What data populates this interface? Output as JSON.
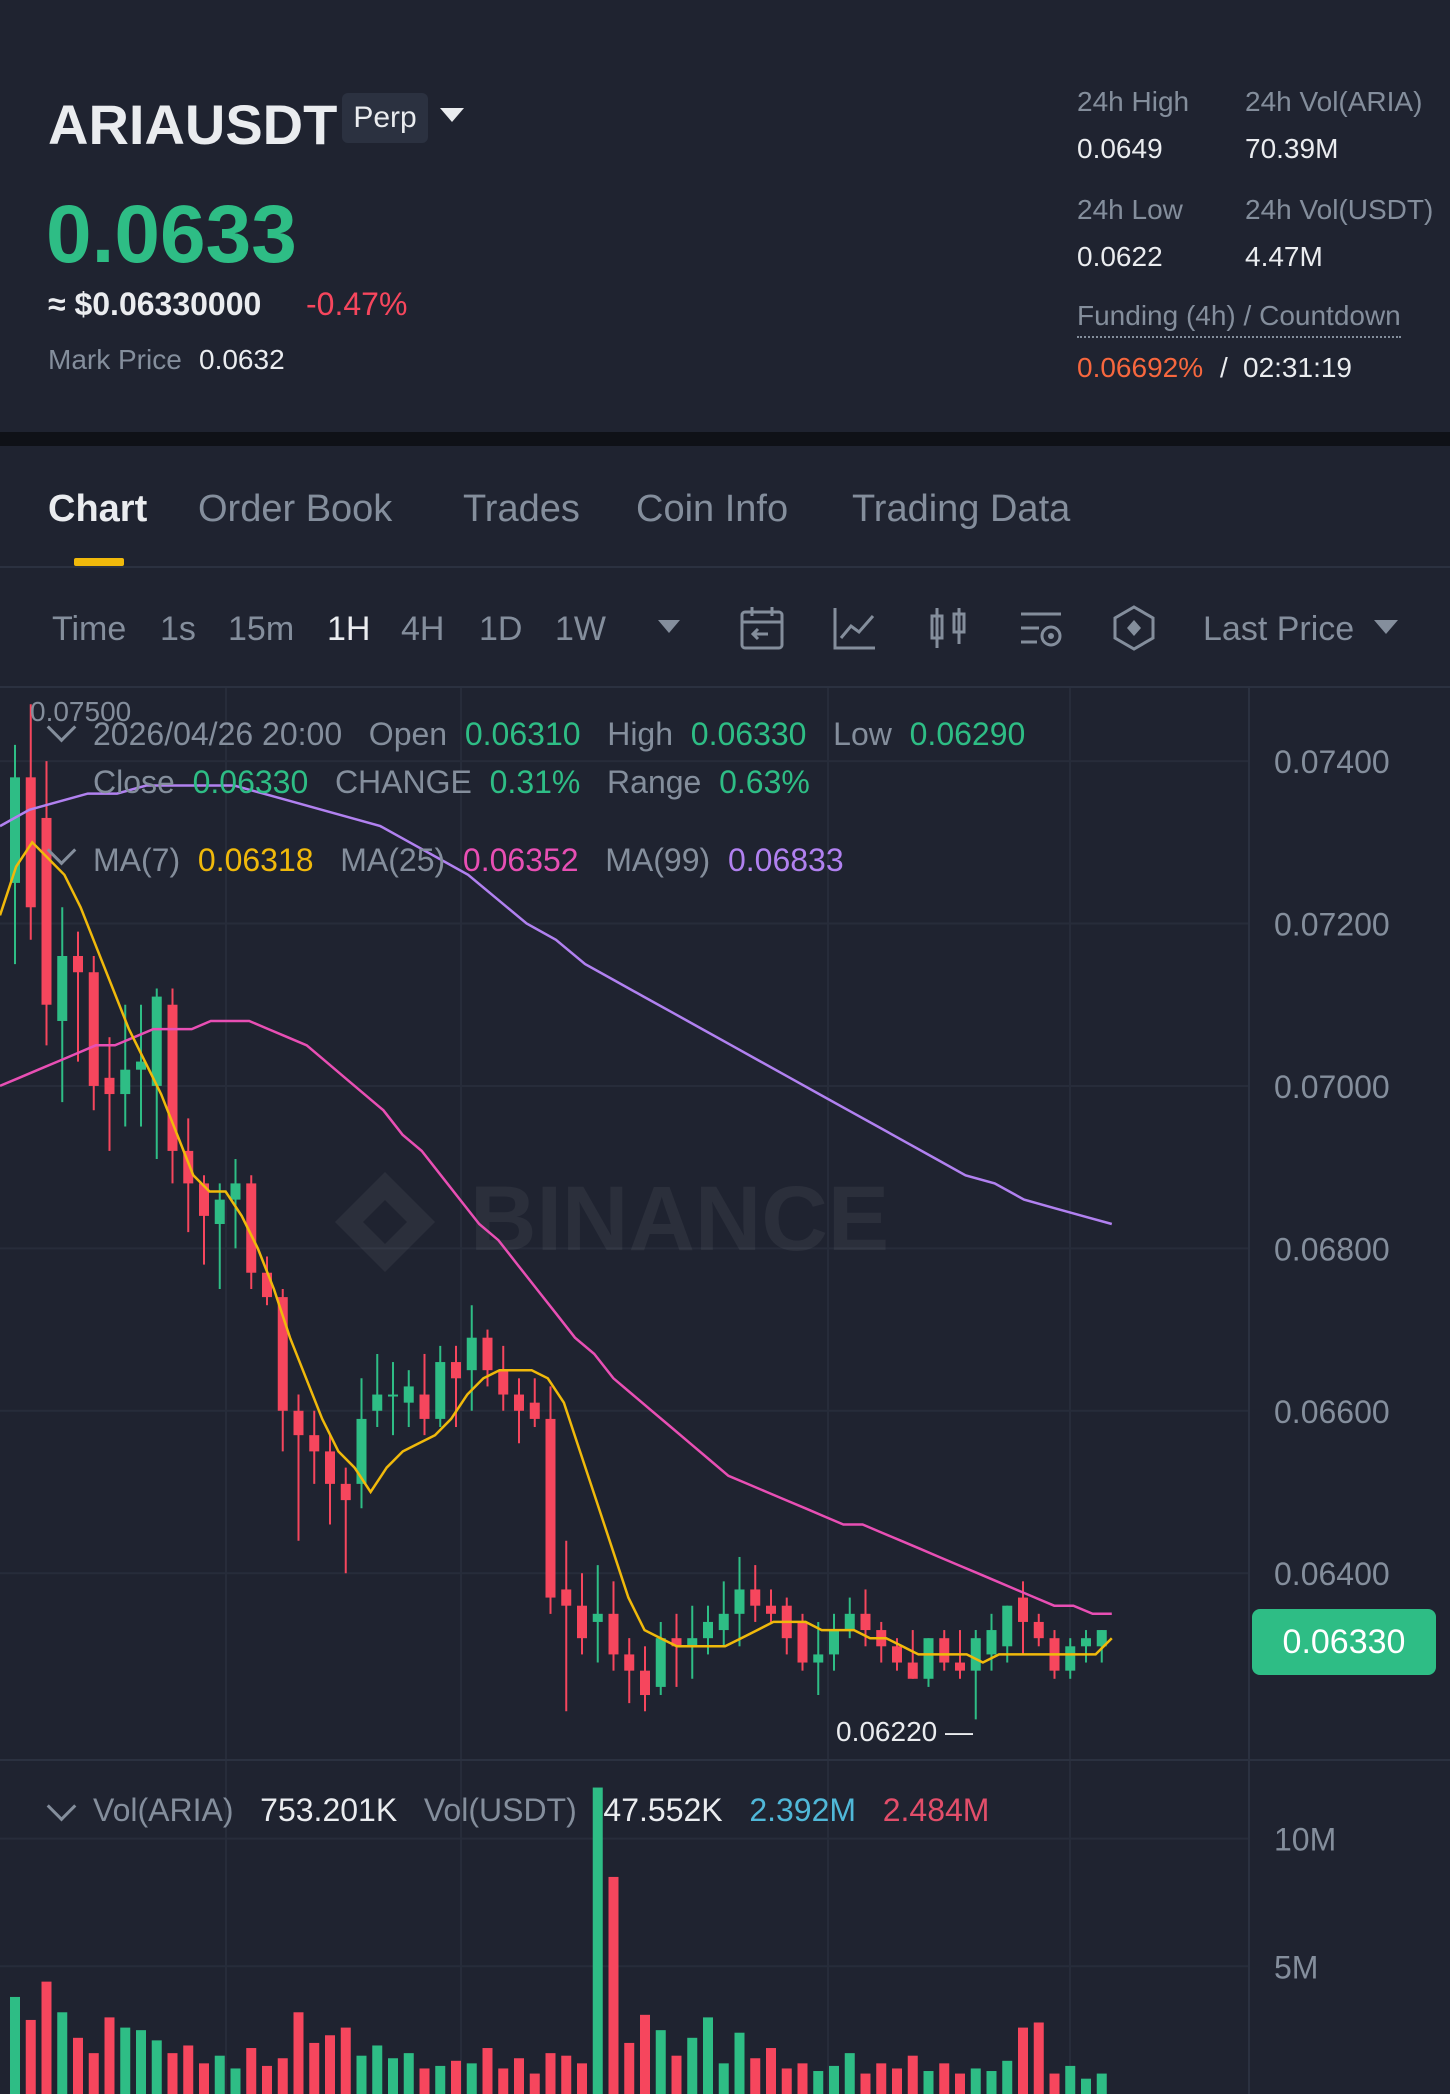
{
  "header": {
    "symbol": "ARIAUSDT",
    "contract_type": "Perp",
    "last_price": "0.0633",
    "approx_usd": "≈ $0.06330000",
    "change_pct": "-0.47%",
    "mark_price_label": "Mark Price",
    "mark_price_value": "0.0632",
    "stats": {
      "high_label": "24h High",
      "high_value": "0.0649",
      "vol_base_label": "24h Vol(ARIA)",
      "vol_base_value": "70.39M",
      "low_label": "24h Low",
      "low_value": "0.0622",
      "vol_quote_label": "24h Vol(USDT)",
      "vol_quote_value": "4.47M"
    },
    "funding": {
      "label": "Funding (4h) / Countdown",
      "rate": "0.06692%",
      "separator": "/",
      "countdown": "02:31:19"
    },
    "colors": {
      "up": "#2ebd85",
      "down": "#f6465d",
      "funding": "#f7673e",
      "accent": "#f0b90b"
    }
  },
  "tabs": [
    {
      "label": "Chart",
      "active": true
    },
    {
      "label": "Order Book"
    },
    {
      "label": "Trades"
    },
    {
      "label": "Coin Info"
    },
    {
      "label": "Trading Data"
    }
  ],
  "toolbar": {
    "timeframes": [
      {
        "label": "Time"
      },
      {
        "label": "1s"
      },
      {
        "label": "15m"
      },
      {
        "label": "1H",
        "active": true
      },
      {
        "label": "4H"
      },
      {
        "label": "1D"
      },
      {
        "label": "1W"
      }
    ],
    "icons": [
      "calendar-icon",
      "indicator-line-icon",
      "candle-type-icon",
      "chart-settings-icon",
      "hexagon-tools-icon"
    ],
    "price_type": "Last Price"
  },
  "overlay": {
    "top_price": "0.07500",
    "datetime": "2026/04/26 20:00",
    "open_label": "Open",
    "open_value": "0.06310",
    "high_label": "High",
    "high_value": "0.06330",
    "low_label": "Low",
    "low_value": "0.06290",
    "close_label": "Close",
    "close_value": "0.06330",
    "change_label": "CHANGE",
    "change_value": "0.31%",
    "range_label": "Range",
    "range_value": "0.63%",
    "ma7_label": "MA(7)",
    "ma7_value": "0.06318",
    "ma25_label": "MA(25)",
    "ma25_value": "0.06352",
    "ma99_label": "MA(99)",
    "ma99_value": "0.06833",
    "low_marker": "0.06220 —",
    "current_price_tag": "0.06330",
    "watermark": "BINANCE"
  },
  "volume_overlay": {
    "base_label": "Vol(ARIA)",
    "base_value": "753.201K",
    "quote_label": "Vol(USDT)",
    "quote_value": "47.552K",
    "ma1_value": "2.392M",
    "ma2_value": "2.484M"
  },
  "chart_data": {
    "type": "candlestick",
    "interval": "1H",
    "y_axis_ticks": [
      "0.07400",
      "0.07200",
      "0.07000",
      "0.06800",
      "0.06600",
      "0.06400"
    ],
    "ylim": [
      0.0617,
      0.0749
    ],
    "volume_axis_ticks": [
      "10M",
      "5M"
    ],
    "volume_ylim": [
      0,
      13
    ],
    "candles": [
      {
        "o": 0.0725,
        "h": 0.0742,
        "l": 0.0715,
        "c": 0.0738
      },
      {
        "o": 0.0738,
        "h": 0.0747,
        "l": 0.0718,
        "c": 0.0722
      },
      {
        "o": 0.0733,
        "h": 0.074,
        "l": 0.0705,
        "c": 0.071
      },
      {
        "o": 0.0708,
        "h": 0.0722,
        "l": 0.0698,
        "c": 0.0716
      },
      {
        "o": 0.0716,
        "h": 0.0719,
        "l": 0.0703,
        "c": 0.0714
      },
      {
        "o": 0.0714,
        "h": 0.0716,
        "l": 0.0697,
        "c": 0.07
      },
      {
        "o": 0.0701,
        "h": 0.0706,
        "l": 0.0692,
        "c": 0.0699
      },
      {
        "o": 0.0699,
        "h": 0.071,
        "l": 0.0695,
        "c": 0.0702
      },
      {
        "o": 0.0702,
        "h": 0.071,
        "l": 0.0695,
        "c": 0.0703
      },
      {
        "o": 0.07,
        "h": 0.0712,
        "l": 0.0691,
        "c": 0.0711
      },
      {
        "o": 0.071,
        "h": 0.0712,
        "l": 0.0688,
        "c": 0.0692
      },
      {
        "o": 0.0692,
        "h": 0.0696,
        "l": 0.0682,
        "c": 0.0688
      },
      {
        "o": 0.0688,
        "h": 0.0689,
        "l": 0.0678,
        "c": 0.0684
      },
      {
        "o": 0.0683,
        "h": 0.0688,
        "l": 0.0675,
        "c": 0.0686
      },
      {
        "o": 0.0686,
        "h": 0.0691,
        "l": 0.068,
        "c": 0.0688
      },
      {
        "o": 0.0688,
        "h": 0.0689,
        "l": 0.0675,
        "c": 0.0677
      },
      {
        "o": 0.0677,
        "h": 0.0679,
        "l": 0.0673,
        "c": 0.0674
      },
      {
        "o": 0.0674,
        "h": 0.0675,
        "l": 0.0655,
        "c": 0.066
      },
      {
        "o": 0.066,
        "h": 0.0662,
        "l": 0.0644,
        "c": 0.0657
      },
      {
        "o": 0.0657,
        "h": 0.066,
        "l": 0.0651,
        "c": 0.0655
      },
      {
        "o": 0.0655,
        "h": 0.0657,
        "l": 0.0646,
        "c": 0.0651
      },
      {
        "o": 0.0651,
        "h": 0.0653,
        "l": 0.064,
        "c": 0.0649
      },
      {
        "o": 0.0651,
        "h": 0.0664,
        "l": 0.0648,
        "c": 0.0659
      },
      {
        "o": 0.066,
        "h": 0.0667,
        "l": 0.0658,
        "c": 0.0662
      },
      {
        "o": 0.0662,
        "h": 0.0666,
        "l": 0.0657,
        "c": 0.0662
      },
      {
        "o": 0.0661,
        "h": 0.0665,
        "l": 0.0658,
        "c": 0.0663
      },
      {
        "o": 0.0662,
        "h": 0.0667,
        "l": 0.0657,
        "c": 0.0659
      },
      {
        "o": 0.0659,
        "h": 0.0668,
        "l": 0.0658,
        "c": 0.0666
      },
      {
        "o": 0.0666,
        "h": 0.0668,
        "l": 0.0658,
        "c": 0.0664
      },
      {
        "o": 0.0665,
        "h": 0.0673,
        "l": 0.066,
        "c": 0.0669
      },
      {
        "o": 0.0669,
        "h": 0.067,
        "l": 0.0663,
        "c": 0.0665
      },
      {
        "o": 0.0665,
        "h": 0.0668,
        "l": 0.066,
        "c": 0.0662
      },
      {
        "o": 0.0662,
        "h": 0.0664,
        "l": 0.0656,
        "c": 0.066
      },
      {
        "o": 0.0661,
        "h": 0.0664,
        "l": 0.0658,
        "c": 0.0659
      },
      {
        "o": 0.0659,
        "h": 0.0663,
        "l": 0.0635,
        "c": 0.0637
      },
      {
        "o": 0.0638,
        "h": 0.0644,
        "l": 0.0623,
        "c": 0.0636
      },
      {
        "o": 0.0636,
        "h": 0.064,
        "l": 0.063,
        "c": 0.0632
      },
      {
        "o": 0.0634,
        "h": 0.0641,
        "l": 0.0629,
        "c": 0.0635
      },
      {
        "o": 0.0635,
        "h": 0.0639,
        "l": 0.0628,
        "c": 0.063
      },
      {
        "o": 0.063,
        "h": 0.0632,
        "l": 0.0624,
        "c": 0.0628
      },
      {
        "o": 0.0628,
        "h": 0.0631,
        "l": 0.0623,
        "c": 0.0625
      },
      {
        "o": 0.0626,
        "h": 0.0634,
        "l": 0.0625,
        "c": 0.0632
      },
      {
        "o": 0.0632,
        "h": 0.0635,
        "l": 0.0626,
        "c": 0.0631
      },
      {
        "o": 0.0631,
        "h": 0.0636,
        "l": 0.0627,
        "c": 0.0632
      },
      {
        "o": 0.0632,
        "h": 0.0636,
        "l": 0.063,
        "c": 0.0634
      },
      {
        "o": 0.0633,
        "h": 0.0639,
        "l": 0.0631,
        "c": 0.0635
      },
      {
        "o": 0.0635,
        "h": 0.0642,
        "l": 0.0631,
        "c": 0.0638
      },
      {
        "o": 0.0638,
        "h": 0.0641,
        "l": 0.0634,
        "c": 0.0636
      },
      {
        "o": 0.0636,
        "h": 0.0638,
        "l": 0.0634,
        "c": 0.0635
      },
      {
        "o": 0.0636,
        "h": 0.0637,
        "l": 0.063,
        "c": 0.0632
      },
      {
        "o": 0.0634,
        "h": 0.0635,
        "l": 0.0628,
        "c": 0.0629
      },
      {
        "o": 0.0629,
        "h": 0.0634,
        "l": 0.0625,
        "c": 0.063
      },
      {
        "o": 0.063,
        "h": 0.0635,
        "l": 0.0628,
        "c": 0.0633
      },
      {
        "o": 0.0633,
        "h": 0.0637,
        "l": 0.0632,
        "c": 0.0635
      },
      {
        "o": 0.0635,
        "h": 0.0638,
        "l": 0.0631,
        "c": 0.0633
      },
      {
        "o": 0.0633,
        "h": 0.0634,
        "l": 0.0629,
        "c": 0.0631
      },
      {
        "o": 0.0631,
        "h": 0.0632,
        "l": 0.0628,
        "c": 0.0629
      },
      {
        "o": 0.0629,
        "h": 0.0633,
        "l": 0.0627,
        "c": 0.0627
      },
      {
        "o": 0.0627,
        "h": 0.0632,
        "l": 0.0626,
        "c": 0.0632
      },
      {
        "o": 0.0632,
        "h": 0.0633,
        "l": 0.0628,
        "c": 0.0629
      },
      {
        "o": 0.0629,
        "h": 0.0633,
        "l": 0.0627,
        "c": 0.0628
      },
      {
        "o": 0.0628,
        "h": 0.0633,
        "l": 0.0622,
        "c": 0.0632
      },
      {
        "o": 0.063,
        "h": 0.0635,
        "l": 0.0628,
        "c": 0.0633
      },
      {
        "o": 0.0631,
        "h": 0.0636,
        "l": 0.0629,
        "c": 0.0636
      },
      {
        "o": 0.0637,
        "h": 0.0639,
        "l": 0.063,
        "c": 0.0634
      },
      {
        "o": 0.0634,
        "h": 0.0635,
        "l": 0.0631,
        "c": 0.0632
      },
      {
        "o": 0.0632,
        "h": 0.0633,
        "l": 0.0627,
        "c": 0.0628
      },
      {
        "o": 0.0628,
        "h": 0.0632,
        "l": 0.0627,
        "c": 0.0631
      },
      {
        "o": 0.0631,
        "h": 0.0633,
        "l": 0.0629,
        "c": 0.0632
      },
      {
        "o": 0.0631,
        "h": 0.0633,
        "l": 0.0629,
        "c": 0.0633
      }
    ],
    "volumes_m": [
      3.8,
      2.9,
      4.4,
      3.2,
      2.2,
      1.6,
      3.0,
      2.6,
      2.5,
      2.1,
      1.6,
      1.9,
      1.2,
      1.5,
      1.0,
      1.8,
      1.1,
      1.4,
      3.2,
      2.0,
      2.3,
      2.6,
      1.5,
      1.9,
      1.4,
      1.6,
      1.0,
      1.1,
      1.3,
      1.2,
      1.8,
      1.0,
      1.4,
      0.8,
      1.6,
      1.5,
      1.2,
      12.0,
      8.5,
      2.0,
      3.1,
      2.5,
      1.5,
      2.2,
      3.0,
      1.2,
      2.4,
      1.4,
      1.8,
      1.0,
      1.2,
      0.9,
      1.1,
      1.6,
      0.8,
      1.2,
      1.0,
      1.5,
      0.9,
      1.2,
      0.8,
      1.0,
      0.9,
      1.3,
      2.6,
      2.8,
      0.8,
      1.1,
      0.6,
      0.8
    ],
    "ma7": [
      0.0721,
      0.0727,
      0.073,
      0.0728,
      0.0726,
      0.0722,
      0.0717,
      0.0712,
      0.0707,
      0.0703,
      0.0699,
      0.0694,
      0.0689,
      0.0687,
      0.0687,
      0.0684,
      0.068,
      0.0675,
      0.0669,
      0.0664,
      0.0659,
      0.0655,
      0.0653,
      0.065,
      0.0653,
      0.0655,
      0.0656,
      0.0657,
      0.0659,
      0.0662,
      0.0664,
      0.0665,
      0.0665,
      0.0665,
      0.0664,
      0.0661,
      0.0655,
      0.0649,
      0.0643,
      0.0637,
      0.0633,
      0.0632,
      0.0631,
      0.0631,
      0.0631,
      0.0631,
      0.0632,
      0.0633,
      0.0634,
      0.0634,
      0.0634,
      0.0633,
      0.0633,
      0.0633,
      0.0632,
      0.0632,
      0.0631,
      0.063,
      0.063,
      0.063,
      0.063,
      0.0629,
      0.063,
      0.063,
      0.063,
      0.063,
      0.063,
      0.063,
      0.063,
      0.0632
    ],
    "ma25": [
      0.07,
      0.0701,
      0.0702,
      0.0703,
      0.0704,
      0.0705,
      0.0705,
      0.0706,
      0.0707,
      0.0707,
      0.0707,
      0.0708,
      0.0708,
      0.0708,
      0.0707,
      0.0706,
      0.0705,
      0.0703,
      0.0701,
      0.0699,
      0.0697,
      0.0694,
      0.0692,
      0.0689,
      0.0686,
      0.0683,
      0.0681,
      0.0678,
      0.0675,
      0.0672,
      0.0669,
      0.0667,
      0.0664,
      0.0662,
      0.066,
      0.0658,
      0.0656,
      0.0654,
      0.0652,
      0.0651,
      0.065,
      0.0649,
      0.0648,
      0.0647,
      0.0646,
      0.0646,
      0.0645,
      0.0644,
      0.0643,
      0.0642,
      0.0641,
      0.064,
      0.0639,
      0.0638,
      0.0637,
      0.0636,
      0.0636,
      0.0635,
      0.0635
    ],
    "ma99": [
      0.0732,
      0.0734,
      0.0735,
      0.0736,
      0.0736,
      0.0737,
      0.0737,
      0.0737,
      0.0737,
      0.0736,
      0.0735,
      0.0734,
      0.0733,
      0.0732,
      0.073,
      0.0728,
      0.0726,
      0.0723,
      0.072,
      0.0718,
      0.0715,
      0.0713,
      0.0711,
      0.0709,
      0.0707,
      0.0705,
      0.0703,
      0.0701,
      0.0699,
      0.0697,
      0.0695,
      0.0693,
      0.0691,
      0.0689,
      0.0688,
      0.0686,
      0.0685,
      0.0684,
      0.0683
    ]
  }
}
